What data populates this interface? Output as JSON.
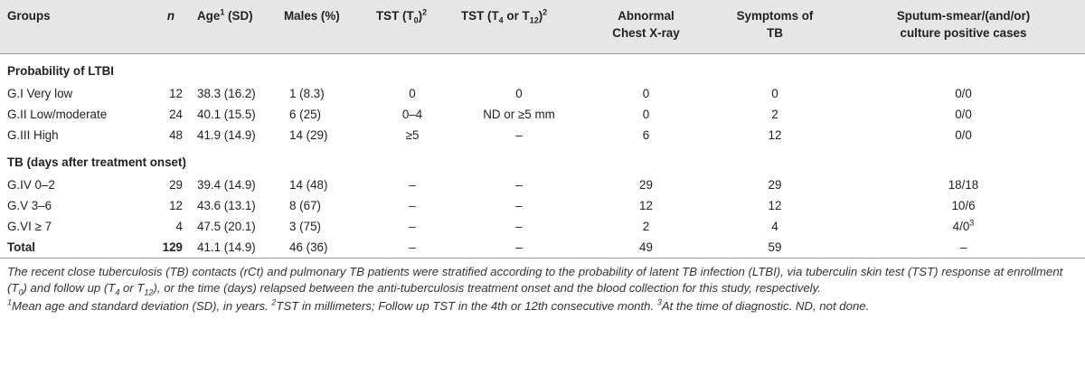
{
  "headers": {
    "groups": "Groups",
    "n": "n",
    "age": "Age",
    "age_sup": "1",
    "age_tail": " (SD)",
    "males": "Males (%)",
    "tst0_pre": "TST (T",
    "tst0_sub": "0",
    "tst0_post": ")",
    "tst0_sup": "2",
    "tst4_pre": "TST (T",
    "tst4_sub1": "4",
    "tst4_mid": " or T",
    "tst4_sub2": "12",
    "tst4_post": ")",
    "tst4_sup": "2",
    "xray_line1": "Abnormal",
    "xray_line2": "Chest X-ray",
    "symptoms_line1": "Symptoms of",
    "symptoms_line2": "TB",
    "sputum_line1": "Sputum-smear/(and/or)",
    "sputum_line2": "culture positive cases"
  },
  "sections": {
    "ltbi": "Probability of LTBI",
    "tb": "TB (days after treatment onset)"
  },
  "rows_ltbi": [
    {
      "group": "G.I Very low",
      "n": "12",
      "age": "38.3 (16.2)",
      "males": "1 (8.3)",
      "tst0": "0",
      "tst4": "0",
      "xray": "0",
      "symptoms": "0",
      "sputum": "0/0"
    },
    {
      "group": "G.II Low/moderate",
      "n": "24",
      "age": "40.1 (15.5)",
      "males": "6 (25)",
      "tst0": "0–4",
      "tst4": "ND or ≥5 mm",
      "xray": "0",
      "symptoms": "2",
      "sputum": "0/0"
    },
    {
      "group": "G.III High",
      "n": "48",
      "age": "41.9 (14.9)",
      "males": "14 (29)",
      "tst0": "≥5",
      "tst4": "–",
      "xray": "6",
      "symptoms": "12",
      "sputum": "0/0"
    }
  ],
  "rows_tb": [
    {
      "group": "G.IV 0–2",
      "n": "29",
      "age": "39.4 (14.9)",
      "males": "14 (48)",
      "tst0": "–",
      "tst4": "–",
      "xray": "29",
      "symptoms": "29",
      "sputum": "18/18"
    },
    {
      "group": "G.V 3–6",
      "n": "12",
      "age": "43.6 (13.1)",
      "males": "8 (67)",
      "tst0": "–",
      "tst4": "–",
      "xray": "12",
      "symptoms": "12",
      "sputum": "10/6"
    },
    {
      "group": "G.VI ≥ 7",
      "n": "4",
      "age": "47.5 (20.1)",
      "males": "3 (75)",
      "tst0": "–",
      "tst4": "–",
      "xray": "2",
      "symptoms": "4",
      "sputum": "4/0",
      "sputum_sup": "3"
    }
  ],
  "total": {
    "group": "Total",
    "n": "129",
    "age": "41.1 (14.9)",
    "males": "46 (36)",
    "tst0": "–",
    "tst4": "–",
    "xray": "49",
    "symptoms": "59",
    "sputum": "–"
  },
  "note": {
    "p1": "The recent close tuberculosis (TB) contacts (rCt) and pulmonary TB patients were stratified according to the probability of latent TB infection (LTBI), via tuberculin skin test (TST) response at enrollment (T",
    "s1": "0",
    "p2": ") and follow up (T",
    "s2": "4",
    "p3": " or T",
    "s3": "12",
    "p4": "), or the time (days) relapsed between the anti-tuberculosis treatment onset and the blood collection for this study, respectively."
  },
  "footnotes": {
    "f1_sup": "1",
    "f1": "Mean age and standard deviation (SD), in years. ",
    "f2_sup": "2",
    "f2": "TST in millimeters; Follow up TST in the 4th or 12th consecutive month. ",
    "f3_sup": "3",
    "f3": "At the time of diagnostic. ND, not done."
  }
}
